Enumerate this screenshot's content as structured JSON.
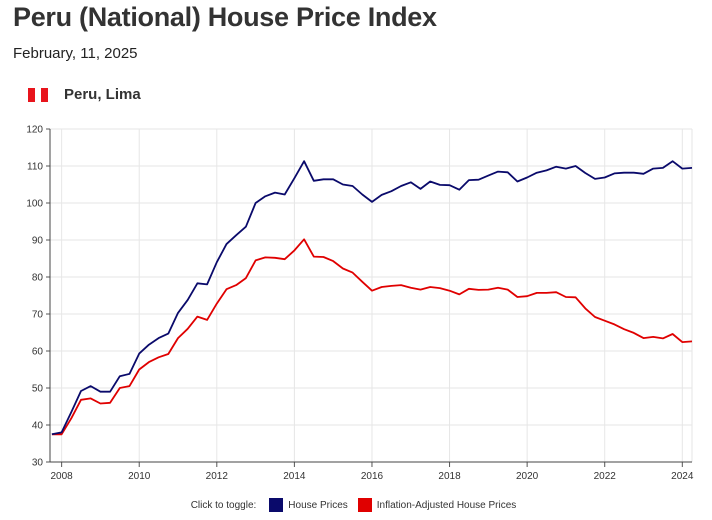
{
  "header": {
    "title": "Peru (National) House Price Index",
    "date": "February, 11, 2025",
    "location": "Peru, Lima"
  },
  "legend": {
    "toggle_label": "Click to toggle:"
  },
  "colors": {
    "house": "#0a0a6b",
    "inflation": "#e00000",
    "flag_red": "#e8141c",
    "flag_white": "#ffffff"
  },
  "chart_data": {
    "type": "line",
    "title": "Peru (National) House Price Index",
    "xlabel": "",
    "ylabel": "",
    "xlim": [
      2007.7,
      2024.25
    ],
    "ylim": [
      30,
      120
    ],
    "yticks": [
      30,
      40,
      50,
      60,
      70,
      80,
      90,
      100,
      110,
      120
    ],
    "xticks": [
      2008,
      2010,
      2012,
      2014,
      2016,
      2018,
      2020,
      2022,
      2024
    ],
    "grid": true,
    "legend_position": "bottom",
    "series": [
      {
        "name": "House Prices",
        "color": "#0a0a6b",
        "x": [
          2007.75,
          2008.0,
          2008.25,
          2008.5,
          2008.75,
          2009.0,
          2009.25,
          2009.5,
          2009.75,
          2010.0,
          2010.25,
          2010.5,
          2010.75,
          2011.0,
          2011.25,
          2011.5,
          2011.75,
          2012.0,
          2012.25,
          2012.5,
          2012.75,
          2013.0,
          2013.25,
          2013.5,
          2013.75,
          2014.0,
          2014.25,
          2014.5,
          2014.75,
          2015.0,
          2015.25,
          2015.5,
          2015.75,
          2016.0,
          2016.25,
          2016.5,
          2016.75,
          2017.0,
          2017.25,
          2017.5,
          2017.75,
          2018.0,
          2018.25,
          2018.5,
          2018.75,
          2019.0,
          2019.25,
          2019.5,
          2019.75,
          2020.0,
          2020.25,
          2020.5,
          2020.75,
          2021.0,
          2021.25,
          2021.5,
          2021.75,
          2022.0,
          2022.25,
          2022.5,
          2022.75,
          2023.0,
          2023.25,
          2023.5,
          2023.75,
          2024.0,
          2024.25
        ],
        "values": [
          37.5,
          38.0,
          43.5,
          49.2,
          50.5,
          49.0,
          49.0,
          53.2,
          53.8,
          59.3,
          61.7,
          63.5,
          64.7,
          70.3,
          73.8,
          78.3,
          78.0,
          84.0,
          88.9,
          91.3,
          93.6,
          100.0,
          101.8,
          102.8,
          102.3,
          106.7,
          111.3,
          106.0,
          106.4,
          106.4,
          105.0,
          104.6,
          102.3,
          100.3,
          102.2,
          103.2,
          104.6,
          105.6,
          103.8,
          105.8,
          104.9,
          104.8,
          103.6,
          106.2,
          106.3,
          107.4,
          108.5,
          108.3,
          105.8,
          106.9,
          108.2,
          108.8,
          109.8,
          109.3,
          110.0,
          108.1,
          106.5,
          106.9,
          108.0,
          108.2,
          108.2,
          107.9,
          109.3,
          109.5,
          111.3,
          109.3,
          109.5
        ]
      },
      {
        "name": "Inflation-Adjusted House Prices",
        "color": "#e00000",
        "x": [
          2007.75,
          2008.0,
          2008.25,
          2008.5,
          2008.75,
          2009.0,
          2009.25,
          2009.5,
          2009.75,
          2010.0,
          2010.25,
          2010.5,
          2010.75,
          2011.0,
          2011.25,
          2011.5,
          2011.75,
          2012.0,
          2012.25,
          2012.5,
          2012.75,
          2013.0,
          2013.25,
          2013.5,
          2013.75,
          2014.0,
          2014.25,
          2014.5,
          2014.75,
          2015.0,
          2015.25,
          2015.5,
          2015.75,
          2016.0,
          2016.25,
          2016.5,
          2016.75,
          2017.0,
          2017.25,
          2017.5,
          2017.75,
          2018.0,
          2018.25,
          2018.5,
          2018.75,
          2019.0,
          2019.25,
          2019.5,
          2019.75,
          2020.0,
          2020.25,
          2020.5,
          2020.75,
          2021.0,
          2021.25,
          2021.5,
          2021.75,
          2022.0,
          2022.25,
          2022.5,
          2022.75,
          2023.0,
          2023.25,
          2023.5,
          2023.75,
          2024.0,
          2024.25
        ],
        "values": [
          37.5,
          37.5,
          41.8,
          46.8,
          47.2,
          45.8,
          46.0,
          50.0,
          50.5,
          55.0,
          57.0,
          58.3,
          59.2,
          63.5,
          66.0,
          69.3,
          68.4,
          72.8,
          76.7,
          77.8,
          79.7,
          84.5,
          85.3,
          85.2,
          84.8,
          87.2,
          90.2,
          85.5,
          85.4,
          84.3,
          82.3,
          81.2,
          78.7,
          76.3,
          77.3,
          77.6,
          77.8,
          77.1,
          76.6,
          77.3,
          77.0,
          76.3,
          75.3,
          76.8,
          76.5,
          76.6,
          77.1,
          76.6,
          74.6,
          74.8,
          75.7,
          75.7,
          75.9,
          74.6,
          74.5,
          71.5,
          69.2,
          68.2,
          67.2,
          65.9,
          64.9,
          63.5,
          63.8,
          63.4,
          64.6,
          62.4,
          62.6
        ]
      }
    ]
  }
}
